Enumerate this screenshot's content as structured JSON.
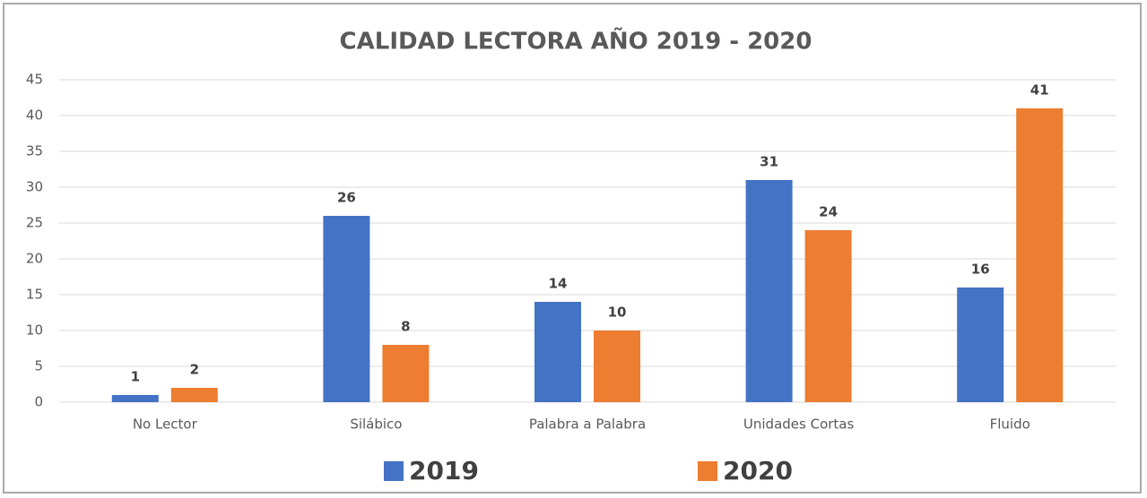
{
  "chart_data": {
    "type": "bar",
    "title": "CALIDAD LECTORA AÑO 2019 - 2020",
    "categories": [
      "No Lector",
      "Silábico",
      "Palabra a Palabra",
      "Unidades Cortas",
      "Fluido"
    ],
    "series": [
      {
        "name": "2019",
        "color": "#4472c4",
        "values": [
          1,
          26,
          14,
          31,
          16
        ]
      },
      {
        "name": "2020",
        "color": "#ed7d31",
        "values": [
          2,
          8,
          10,
          24,
          41
        ]
      }
    ],
    "ylim": [
      0,
      45
    ],
    "yticks": [
      0,
      5,
      10,
      15,
      20,
      25,
      30,
      35,
      40,
      45
    ],
    "grid": true,
    "legend": "bottom"
  }
}
